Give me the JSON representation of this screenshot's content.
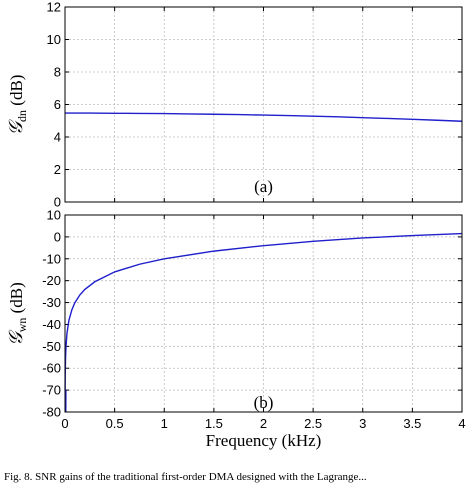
{
  "chart_data": [
    {
      "type": "line",
      "panel_label": "(a)",
      "xlabel": "",
      "ylabel_symbol": "𝒢",
      "ylabel_sub": "dn",
      "ylabel_unit": "(dB)",
      "xlim": [
        0,
        4
      ],
      "ylim": [
        0,
        12
      ],
      "xticks": [
        0,
        0.5,
        1,
        1.5,
        2,
        2.5,
        3,
        3.5,
        4
      ],
      "yticks": [
        0,
        2,
        4,
        6,
        8,
        10,
        12
      ],
      "grid": true,
      "color": "#1f1fcc",
      "series": [
        {
          "x": [
            0,
            0.25,
            0.5,
            0.75,
            1,
            1.25,
            1.5,
            1.75,
            2,
            2.25,
            2.5,
            2.75,
            3,
            3.25,
            3.5,
            3.75,
            4
          ],
          "values": [
            5.47,
            5.47,
            5.46,
            5.45,
            5.44,
            5.42,
            5.4,
            5.38,
            5.35,
            5.32,
            5.28,
            5.24,
            5.19,
            5.14,
            5.09,
            5.03,
            4.97
          ]
        }
      ]
    },
    {
      "type": "line",
      "panel_label": "(b)",
      "xlabel": "Frequency (kHz)",
      "ylabel_symbol": "𝒢",
      "ylabel_sub": "wn",
      "ylabel_unit": "(dB)",
      "xlim": [
        0,
        4
      ],
      "ylim": [
        -80,
        10
      ],
      "xticks": [
        0,
        0.5,
        1,
        1.5,
        2,
        2.5,
        3,
        3.5,
        4
      ],
      "yticks": [
        -80,
        -70,
        -60,
        -50,
        -40,
        -30,
        -20,
        -10,
        0,
        10
      ],
      "grid": true,
      "color": "#1f1fcc",
      "series": [
        {
          "x": [
            0.001,
            0.003,
            0.006,
            0.01,
            0.02,
            0.04,
            0.07,
            0.1,
            0.15,
            0.2,
            0.3,
            0.5,
            0.75,
            1,
            1.5,
            2,
            2.5,
            3,
            3.5,
            4
          ],
          "values": [
            -70,
            -60.5,
            -54.5,
            -50,
            -44,
            -38,
            -33.2,
            -30,
            -26.5,
            -24,
            -20.5,
            -16,
            -12.5,
            -10,
            -6.5,
            -4,
            -2,
            -0.5,
            0.6,
            1.5
          ]
        }
      ]
    }
  ],
  "caption": "Fig. 8. SNR gains of the traditional first-order DMA designed with the Lagrange..."
}
